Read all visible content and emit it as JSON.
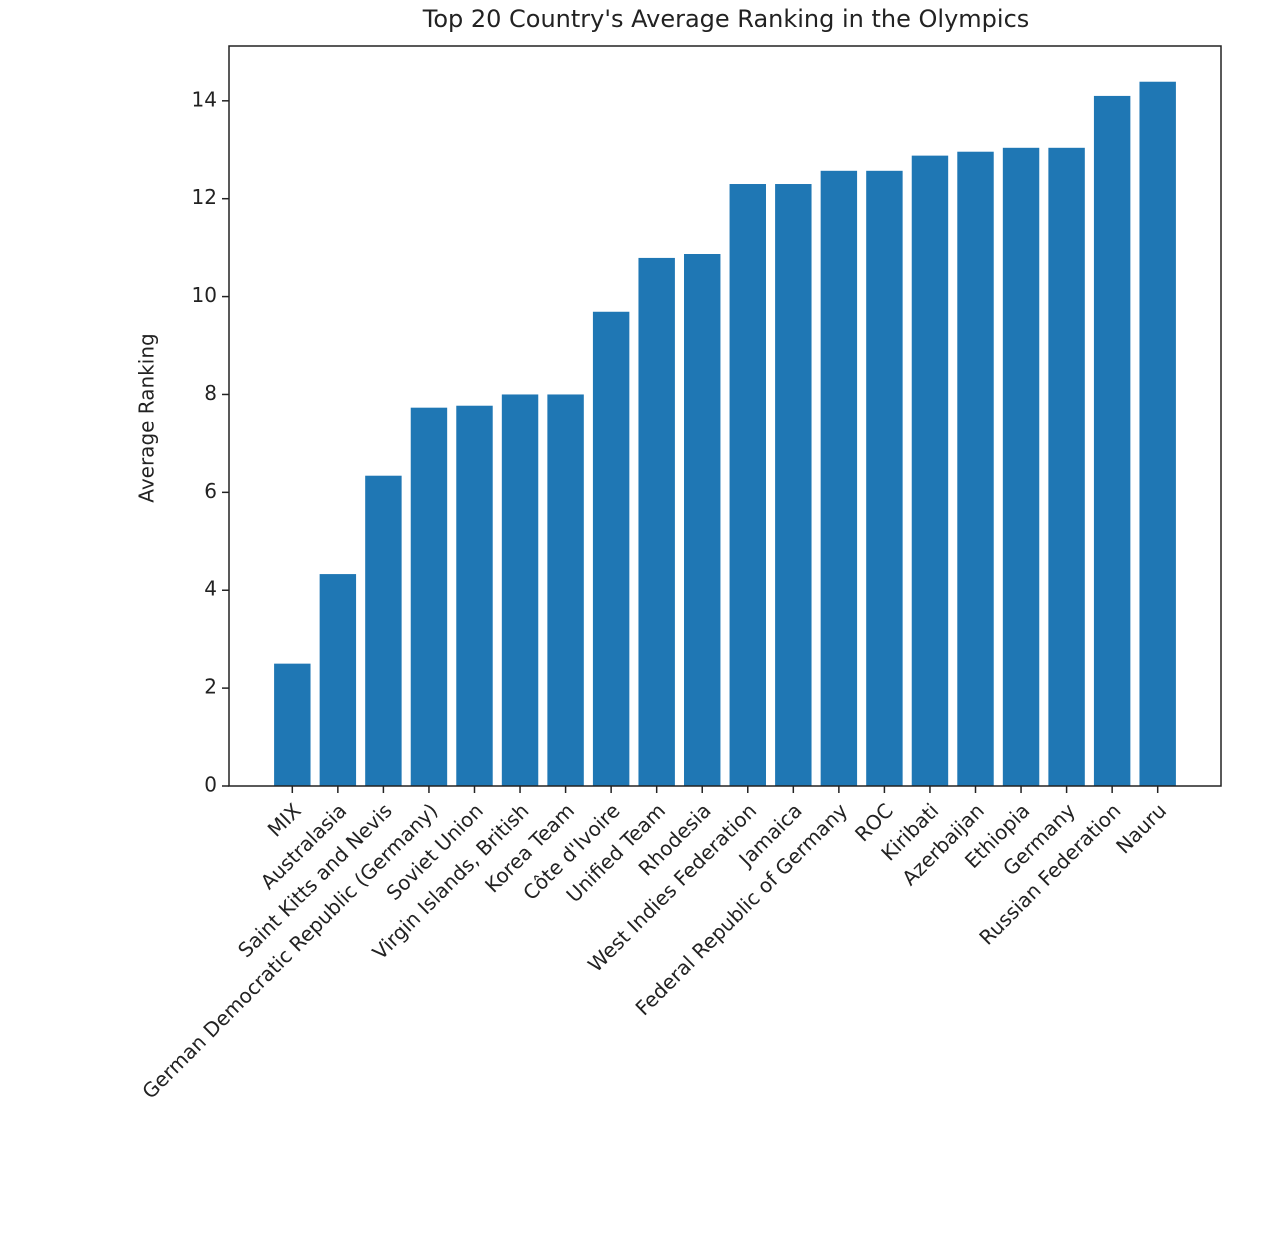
{
  "chart_data": {
    "type": "bar",
    "title": "Top 20 Country's Average Ranking in the Olympics",
    "y_label": "Average Ranking",
    "categories": [
      "MIX",
      "Australasia",
      "Saint Kitts and Nevis",
      "German Democratic Republic (Germany)",
      "Soviet Union",
      "Virgin Islands, British",
      "Korea Team",
      "Côte d'Ivoire",
      "Unified Team",
      "Rhodesia",
      "West Indies Federation",
      "Jamaica",
      "Federal Republic of Germany",
      "ROC",
      "Kiribati",
      "Azerbaijan",
      "Ethiopia",
      "Germany",
      "Russian Federation",
      "Nauru"
    ],
    "values": [
      2.5,
      4.33,
      6.34,
      7.73,
      7.77,
      8.0,
      8.0,
      9.69,
      10.79,
      10.87,
      12.3,
      12.3,
      12.57,
      12.57,
      12.88,
      12.96,
      13.04,
      13.04,
      14.1,
      14.39
    ],
    "color": "#1f77b4",
    "ylim": [
      0,
      15.12
    ],
    "yticks": [
      0,
      2,
      4,
      6,
      8,
      10,
      12,
      14
    ]
  }
}
